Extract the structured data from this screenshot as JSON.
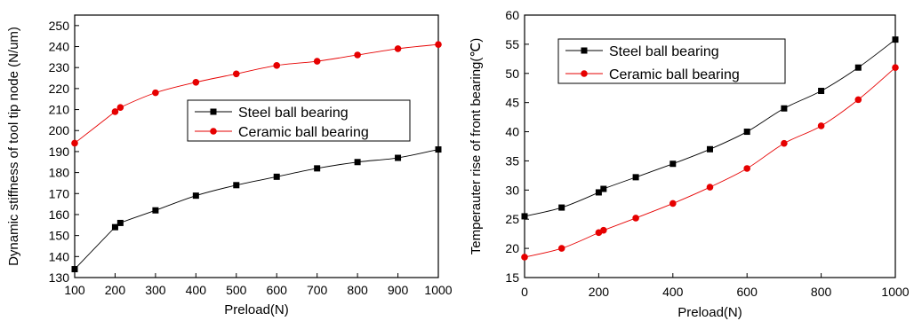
{
  "chart_data": [
    {
      "type": "line",
      "xlabel": "Preload(N)",
      "ylabel": "Dynamic stiffness of tool tip node (N/um)",
      "xlim": [
        100,
        1000
      ],
      "ylim": [
        130,
        255
      ],
      "xticks": [
        100,
        200,
        300,
        400,
        500,
        600,
        700,
        800,
        900,
        1000
      ],
      "yticks": [
        130,
        140,
        150,
        160,
        170,
        180,
        190,
        200,
        210,
        220,
        230,
        240,
        250
      ],
      "legend_position": "center",
      "series": [
        {
          "name": "Steel ball bearing",
          "color": "#000000",
          "marker": "square",
          "x": [
            100,
            200,
            213,
            300,
            400,
            500,
            600,
            700,
            800,
            900,
            1000
          ],
          "y": [
            134,
            154,
            156,
            162,
            169,
            174,
            178,
            182,
            185,
            187,
            191
          ]
        },
        {
          "name": "Ceramic ball bearing",
          "color": "#e60000",
          "marker": "circle",
          "x": [
            100,
            200,
            213,
            300,
            400,
            500,
            600,
            700,
            800,
            900,
            1000
          ],
          "y": [
            194,
            209,
            211,
            218,
            223,
            227,
            231,
            233,
            236,
            239,
            241
          ]
        }
      ]
    },
    {
      "type": "line",
      "xlabel": "Preload(N)",
      "ylabel": "Temperauter rise of front bearing(℃)",
      "xlim": [
        0,
        1000
      ],
      "ylim": [
        15,
        60
      ],
      "xticks": [
        0,
        200,
        400,
        600,
        800,
        1000
      ],
      "yticks": [
        15,
        20,
        25,
        30,
        35,
        40,
        45,
        50,
        55,
        60
      ],
      "legend_position": "top-left",
      "series": [
        {
          "name": "Steel ball bearing",
          "color": "#000000",
          "marker": "square",
          "x": [
            0,
            100,
            200,
            213,
            300,
            400,
            500,
            600,
            700,
            800,
            900,
            1000
          ],
          "y": [
            25.5,
            27,
            29.6,
            30.2,
            32.2,
            34.5,
            37,
            40,
            44,
            47,
            51,
            55.8
          ]
        },
        {
          "name": "Ceramic ball bearing",
          "color": "#e60000",
          "marker": "circle",
          "x": [
            0,
            100,
            200,
            213,
            300,
            400,
            500,
            600,
            700,
            800,
            900,
            1000
          ],
          "y": [
            18.5,
            20,
            22.7,
            23.1,
            25.2,
            27.7,
            30.5,
            33.7,
            38,
            41,
            45.5,
            51
          ]
        }
      ]
    }
  ]
}
